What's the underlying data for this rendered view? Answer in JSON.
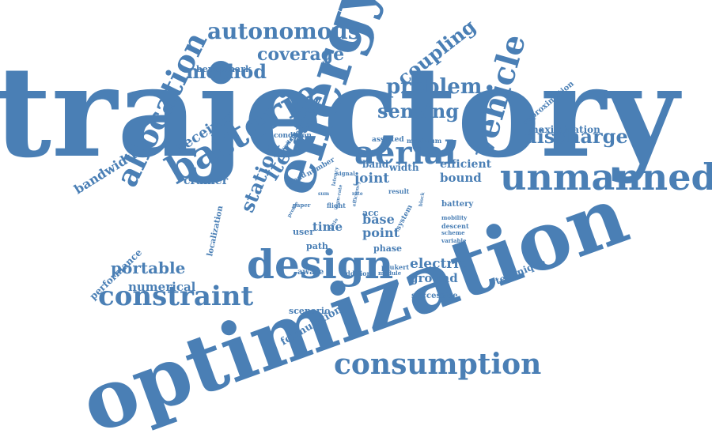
{
  "cloud": {
    "color": "#4a7fb5",
    "words": [
      "trajectory",
      "optimization",
      "energy",
      "design",
      "unmanned",
      "aerial",
      "batterie",
      "vehicle",
      "allocation",
      "constraint",
      "consumption",
      "autonomous",
      "coverage",
      "coupling",
      "method",
      "problem",
      "sensing",
      "discharge",
      "iterative",
      "station",
      "bandwidth",
      "receiver",
      "cramér",
      "portable",
      "numerical",
      "performance",
      "localization",
      "formulation",
      "scenario",
      "benchmark",
      "maximization",
      "approximation",
      "efficient",
      "bound",
      "joint",
      "band",
      "width",
      "base",
      "point",
      "phase",
      "time",
      "path",
      "user",
      "electric",
      "ground",
      "successive",
      "technique",
      "battery",
      "mobility",
      "descent",
      "scheme",
      "variable",
      "acc",
      "result",
      "signal",
      "lead",
      "number",
      "condition",
      "available",
      "assisted",
      "maximum",
      "paper",
      "profile",
      "aware",
      "addition",
      "module",
      "peukert",
      "system",
      "flight",
      "latency",
      "ratio",
      "block",
      "sum",
      "sum-rate",
      "efficiency",
      "rate"
    ]
  }
}
